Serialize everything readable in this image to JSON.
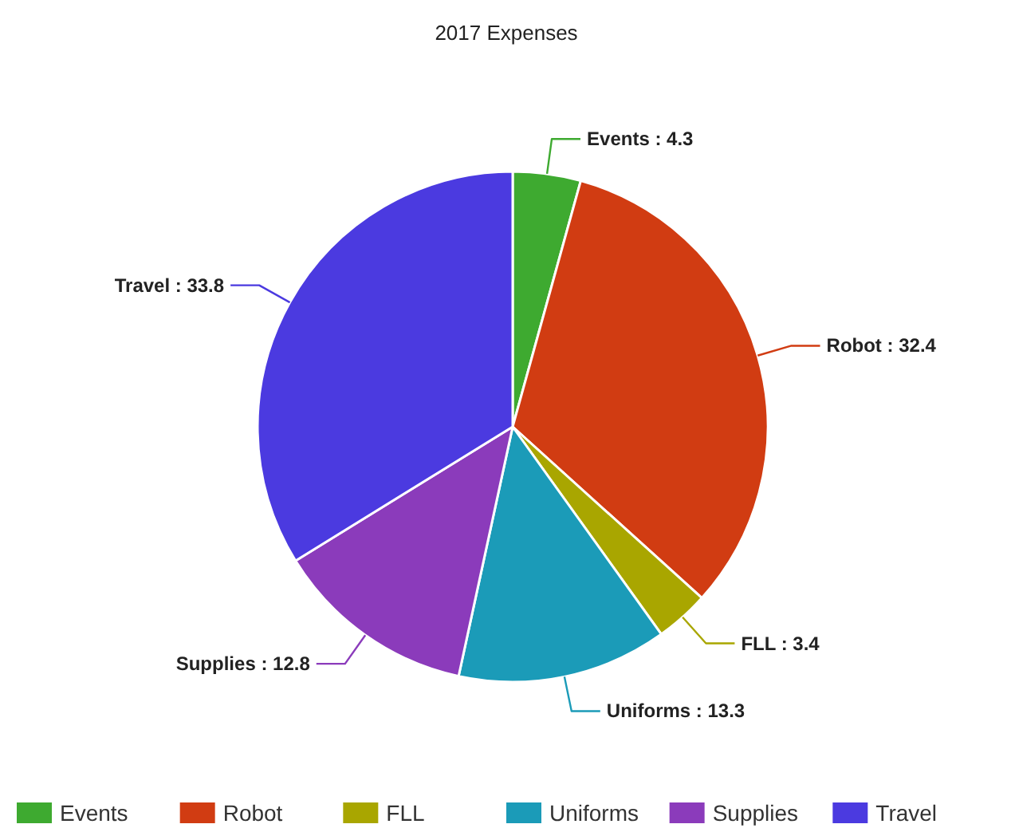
{
  "chart_data": {
    "type": "pie",
    "title": "2017 Expenses",
    "categories": [
      "Events",
      "Robot",
      "FLL",
      "Uniforms",
      "Supplies",
      "Travel"
    ],
    "values": [
      4.3,
      32.4,
      3.4,
      13.3,
      12.8,
      33.8
    ],
    "colors": [
      "#3eaa30",
      "#d13c12",
      "#a9a600",
      "#1b9bb8",
      "#8b3bbb",
      "#4b3ae0"
    ],
    "value_labels": [
      "Events : 4.3",
      "Robot : 32.4",
      "FLL : 3.4",
      "Uniforms : 13.3",
      "Supplies : 12.8",
      "Travel : 33.8"
    ],
    "legend": "bottom"
  }
}
